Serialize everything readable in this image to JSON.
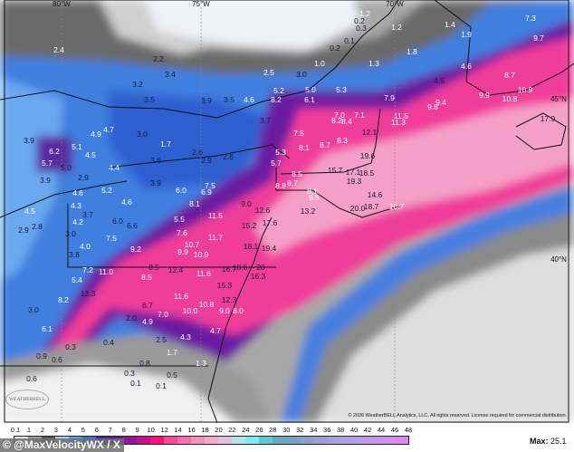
{
  "map": {
    "grid_labels": {
      "lon": [
        "80°W",
        "75°W",
        "70°W"
      ],
      "lat": [
        "45°N",
        "40°N"
      ]
    },
    "labels": [
      "2.4",
      "2.2",
      "3.4",
      "3.2",
      "2.5",
      "3.5",
      "3.9",
      "3.5",
      "4.6",
      "8.2",
      "3.7",
      "4.9",
      "4.7",
      "3.0",
      "1.7",
      "6.2",
      "5.1",
      "3.9",
      "5.7",
      "5.0",
      "4.5",
      "4.4",
      "3.6",
      "2.6",
      "2.9",
      "2.6",
      "5.7",
      "5.3",
      "2.9",
      "3.9",
      "4.6",
      "5.2",
      "3.9",
      "6.0",
      "6.9",
      "7.5",
      "8.8",
      "4.6",
      "8.1",
      "9.0",
      "12.6",
      "1.2",
      "0.2",
      "0.3",
      "1.2",
      "1.4",
      "7.3",
      "1.9",
      "0.1",
      "0.2",
      "9.7",
      "1.8",
      "1.0",
      "1.3",
      "4.6",
      "3.0",
      "4.5",
      "8.7",
      "10.9",
      "9.9",
      "10.8",
      "5.0",
      "5.3",
      "5.2",
      "6.1",
      "7.9",
      "9.4",
      "9.8",
      "7.0",
      "7.1",
      "8.2",
      "8.4",
      "11.5",
      "11.3",
      "12.1",
      "17.9",
      "7.5",
      "8.3",
      "8.1",
      "8.7",
      "19.6",
      "15.7",
      "17.1",
      "18.5",
      "8.5",
      "8.7",
      "19.3",
      "14.6",
      "8.1",
      "9.5",
      "13.2",
      "20.0",
      "18.7",
      "10.7",
      "4.5",
      "4.3",
      "3.7",
      "4.2",
      "2.9",
      "2.8",
      "3.0",
      "4.0",
      "3.8",
      "6.0",
      "6.6",
      "7.5",
      "9.2",
      "5.5",
      "7.6",
      "11.5",
      "11.7",
      "10.7",
      "9.9",
      "10.9",
      "18.1",
      "19.4",
      "15.2",
      "17.6",
      "7.2",
      "11.0",
      "8.5",
      "8.5",
      "12.4",
      "11.6",
      "16.7",
      "18.6",
      "20",
      "16.3",
      "5.4",
      "13.3",
      "15.3",
      "8.2",
      "11.6",
      "10.8",
      "12.3",
      "3.0",
      "6.7",
      "7.0",
      "10.0",
      "9.0",
      "8.0",
      "6.1",
      "2.0",
      "4.9",
      "4.7",
      "4.3",
      "2.5",
      "0.3",
      "0.4",
      "0.9",
      "0.6",
      "1.7",
      "0.8",
      "1.3",
      "0.3",
      "0.5",
      "0.1",
      "0.1",
      "0.6"
    ],
    "logo_text": "WeatherBELL",
    "copyright": "© 2026 WeatherBELL Analytics, LLC. All rights reserved. License required for commercial distribution."
  },
  "legend": {
    "ticks": [
      "0.1",
      "1",
      "2",
      "3",
      "4",
      "5",
      "6",
      "7",
      "8",
      "9",
      "10",
      "12",
      "14",
      "16",
      "18",
      "20",
      "22",
      "24",
      "26",
      "28",
      "30",
      "32",
      "34",
      "36",
      "38",
      "40",
      "42",
      "44",
      "46",
      "48"
    ],
    "colors": [
      "#e6e6e6",
      "#9a9a9a",
      "#585858",
      "#a8d0f0",
      "#5a9ee8",
      "#3a6fd8",
      "#3a2a9a",
      "#5a1a8a",
      "#8a1a9a",
      "#c0148a",
      "#f01478",
      "#f54a9a",
      "#f870b0",
      "#f890c0",
      "#f5a8cc",
      "#e0c0dc",
      "#b8e0e8",
      "#80e8f0",
      "#60c8d0",
      "#6aa8b8",
      "#7aa0c0",
      "#8aa0cc",
      "#98a0d4",
      "#a4a0dc",
      "#b0a0e0",
      "#bc9ce4",
      "#c898e8",
      "#d090ec",
      "#d888f0"
    ],
    "max_label": "Max:",
    "max_value": "25.1"
  },
  "watermark": "© @MaxVelocityWX / X"
}
